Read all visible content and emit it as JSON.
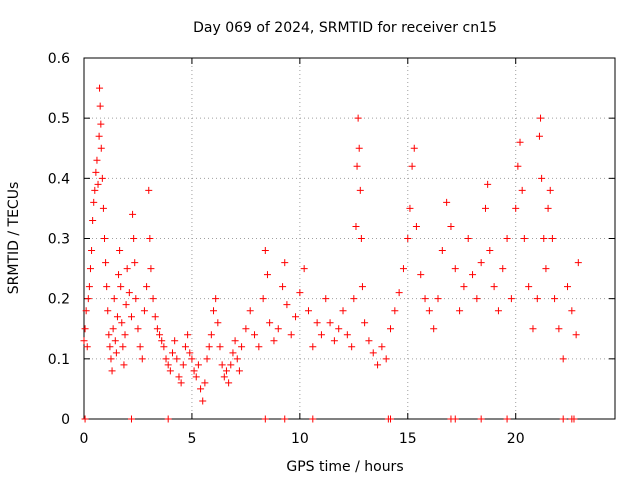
{
  "chart_data": {
    "type": "scatter",
    "title": "Day 069 of 2024, SRMTID for receiver cn15",
    "xlabel": "GPS time / hours",
    "ylabel": "SRMTID / TECUs",
    "xlim": [
      0,
      24.6
    ],
    "ylim": [
      0,
      0.6
    ],
    "xticks": [
      0,
      5,
      10,
      15,
      20
    ],
    "xtick_labels": [
      "0",
      "5",
      "10",
      "15",
      "20"
    ],
    "yticks": [
      0,
      0.1,
      0.2,
      0.3,
      0.4,
      0.5,
      0.6
    ],
    "ytick_labels": [
      "0",
      "0.1",
      "0.2",
      "0.3",
      "0.4",
      "0.5",
      "0.6"
    ],
    "grid": true,
    "marker": "plus",
    "color": "#ff0000",
    "series": [
      {
        "name": "SRMTID",
        "points": [
          [
            0.0,
            0.13
          ],
          [
            0.05,
            0.15
          ],
          [
            0.1,
            0.18
          ],
          [
            0.15,
            0.12
          ],
          [
            0.2,
            0.2
          ],
          [
            0.25,
            0.22
          ],
          [
            0.3,
            0.25
          ],
          [
            0.35,
            0.28
          ],
          [
            0.4,
            0.33
          ],
          [
            0.45,
            0.36
          ],
          [
            0.5,
            0.38
          ],
          [
            0.55,
            0.41
          ],
          [
            0.6,
            0.43
          ],
          [
            0.65,
            0.39
          ],
          [
            0.7,
            0.47
          ],
          [
            0.72,
            0.55
          ],
          [
            0.75,
            0.52
          ],
          [
            0.78,
            0.49
          ],
          [
            0.8,
            0.45
          ],
          [
            0.85,
            0.4
          ],
          [
            0.9,
            0.35
          ],
          [
            0.95,
            0.3
          ],
          [
            1.0,
            0.26
          ],
          [
            1.05,
            0.22
          ],
          [
            1.1,
            0.18
          ],
          [
            1.15,
            0.14
          ],
          [
            1.2,
            0.12
          ],
          [
            1.25,
            0.1
          ],
          [
            1.3,
            0.08
          ],
          [
            1.35,
            0.15
          ],
          [
            1.4,
            0.2
          ],
          [
            1.45,
            0.13
          ],
          [
            1.5,
            0.11
          ],
          [
            1.55,
            0.17
          ],
          [
            1.6,
            0.24
          ],
          [
            1.65,
            0.28
          ],
          [
            1.7,
            0.22
          ],
          [
            1.75,
            0.16
          ],
          [
            1.8,
            0.12
          ],
          [
            1.85,
            0.09
          ],
          [
            1.9,
            0.14
          ],
          [
            1.95,
            0.19
          ],
          [
            2.0,
            0.25
          ],
          [
            2.1,
            0.21
          ],
          [
            2.2,
            0.17
          ],
          [
            2.25,
            0.34
          ],
          [
            2.3,
            0.3
          ],
          [
            2.35,
            0.26
          ],
          [
            2.4,
            0.2
          ],
          [
            2.5,
            0.15
          ],
          [
            2.6,
            0.12
          ],
          [
            2.7,
            0.1
          ],
          [
            2.8,
            0.18
          ],
          [
            2.9,
            0.22
          ],
          [
            3.0,
            0.38
          ],
          [
            3.05,
            0.3
          ],
          [
            3.1,
            0.25
          ],
          [
            3.2,
            0.2
          ],
          [
            3.3,
            0.17
          ],
          [
            3.4,
            0.15
          ],
          [
            3.5,
            0.14
          ],
          [
            3.6,
            0.13
          ],
          [
            3.7,
            0.12
          ],
          [
            3.8,
            0.1
          ],
          [
            3.9,
            0.09
          ],
          [
            4.0,
            0.08
          ],
          [
            4.1,
            0.11
          ],
          [
            4.2,
            0.13
          ],
          [
            4.3,
            0.1
          ],
          [
            4.4,
            0.07
          ],
          [
            4.5,
            0.06
          ],
          [
            4.6,
            0.09
          ],
          [
            4.7,
            0.12
          ],
          [
            4.8,
            0.14
          ],
          [
            4.9,
            0.11
          ],
          [
            5.0,
            0.1
          ],
          [
            5.1,
            0.08
          ],
          [
            5.2,
            0.07
          ],
          [
            5.3,
            0.09
          ],
          [
            5.4,
            0.05
          ],
          [
            5.5,
            0.03
          ],
          [
            5.6,
            0.06
          ],
          [
            5.7,
            0.1
          ],
          [
            5.8,
            0.12
          ],
          [
            5.9,
            0.14
          ],
          [
            6.0,
            0.18
          ],
          [
            6.1,
            0.2
          ],
          [
            6.2,
            0.16
          ],
          [
            6.3,
            0.12
          ],
          [
            6.4,
            0.09
          ],
          [
            6.5,
            0.07
          ],
          [
            6.6,
            0.08
          ],
          [
            6.7,
            0.06
          ],
          [
            6.8,
            0.09
          ],
          [
            6.9,
            0.11
          ],
          [
            7.0,
            0.13
          ],
          [
            7.1,
            0.1
          ],
          [
            7.2,
            0.08
          ],
          [
            7.3,
            0.12
          ],
          [
            7.5,
            0.15
          ],
          [
            7.7,
            0.18
          ],
          [
            7.9,
            0.14
          ],
          [
            8.1,
            0.12
          ],
          [
            8.3,
            0.2
          ],
          [
            8.4,
            0.28
          ],
          [
            8.5,
            0.24
          ],
          [
            8.6,
            0.16
          ],
          [
            8.8,
            0.13
          ],
          [
            9.0,
            0.15
          ],
          [
            9.2,
            0.22
          ],
          [
            9.3,
            0.26
          ],
          [
            9.4,
            0.19
          ],
          [
            9.6,
            0.14
          ],
          [
            9.8,
            0.17
          ],
          [
            10.0,
            0.21
          ],
          [
            10.2,
            0.25
          ],
          [
            10.4,
            0.18
          ],
          [
            10.6,
            0.12
          ],
          [
            10.8,
            0.16
          ],
          [
            11.0,
            0.14
          ],
          [
            11.2,
            0.2
          ],
          [
            11.4,
            0.16
          ],
          [
            11.6,
            0.13
          ],
          [
            11.8,
            0.15
          ],
          [
            12.0,
            0.18
          ],
          [
            12.2,
            0.14
          ],
          [
            12.4,
            0.12
          ],
          [
            12.5,
            0.2
          ],
          [
            12.6,
            0.32
          ],
          [
            12.65,
            0.42
          ],
          [
            12.7,
            0.5
          ],
          [
            12.75,
            0.45
          ],
          [
            12.8,
            0.38
          ],
          [
            12.85,
            0.3
          ],
          [
            12.9,
            0.22
          ],
          [
            13.0,
            0.16
          ],
          [
            13.2,
            0.13
          ],
          [
            13.4,
            0.11
          ],
          [
            13.6,
            0.09
          ],
          [
            13.8,
            0.12
          ],
          [
            14.0,
            0.1
          ],
          [
            14.2,
            0.15
          ],
          [
            14.4,
            0.18
          ],
          [
            14.6,
            0.21
          ],
          [
            14.8,
            0.25
          ],
          [
            15.0,
            0.3
          ],
          [
            15.1,
            0.35
          ],
          [
            15.2,
            0.42
          ],
          [
            15.3,
            0.45
          ],
          [
            15.4,
            0.32
          ],
          [
            15.6,
            0.24
          ],
          [
            15.8,
            0.2
          ],
          [
            16.0,
            0.18
          ],
          [
            16.2,
            0.15
          ],
          [
            16.4,
            0.2
          ],
          [
            16.6,
            0.28
          ],
          [
            16.8,
            0.36
          ],
          [
            17.0,
            0.32
          ],
          [
            17.2,
            0.25
          ],
          [
            17.4,
            0.18
          ],
          [
            17.6,
            0.22
          ],
          [
            17.8,
            0.3
          ],
          [
            18.0,
            0.24
          ],
          [
            18.2,
            0.2
          ],
          [
            18.4,
            0.26
          ],
          [
            18.6,
            0.35
          ],
          [
            18.7,
            0.39
          ],
          [
            18.8,
            0.28
          ],
          [
            19.0,
            0.22
          ],
          [
            19.2,
            0.18
          ],
          [
            19.4,
            0.25
          ],
          [
            19.6,
            0.3
          ],
          [
            19.8,
            0.2
          ],
          [
            20.0,
            0.35
          ],
          [
            20.1,
            0.42
          ],
          [
            20.2,
            0.46
          ],
          [
            20.3,
            0.38
          ],
          [
            20.4,
            0.3
          ],
          [
            20.6,
            0.22
          ],
          [
            20.8,
            0.15
          ],
          [
            21.0,
            0.2
          ],
          [
            21.1,
            0.47
          ],
          [
            21.15,
            0.5
          ],
          [
            21.2,
            0.4
          ],
          [
            21.3,
            0.3
          ],
          [
            21.4,
            0.25
          ],
          [
            21.5,
            0.35
          ],
          [
            21.6,
            0.38
          ],
          [
            21.7,
            0.3
          ],
          [
            21.8,
            0.2
          ],
          [
            22.0,
            0.15
          ],
          [
            22.2,
            0.1
          ],
          [
            22.4,
            0.22
          ],
          [
            22.6,
            0.18
          ],
          [
            22.8,
            0.14
          ],
          [
            22.9,
            0.26
          ],
          [
            0.05,
            0.0
          ],
          [
            2.2,
            0.0
          ],
          [
            3.9,
            0.0
          ],
          [
            8.4,
            0.0
          ],
          [
            9.3,
            0.0
          ],
          [
            10.6,
            0.0
          ],
          [
            14.1,
            0.0
          ],
          [
            14.2,
            0.0
          ],
          [
            17.0,
            0.0
          ],
          [
            17.2,
            0.0
          ],
          [
            18.4,
            0.0
          ],
          [
            19.6,
            0.0
          ],
          [
            22.2,
            0.0
          ],
          [
            22.6,
            0.0
          ],
          [
            22.7,
            0.0
          ]
        ]
      }
    ]
  }
}
